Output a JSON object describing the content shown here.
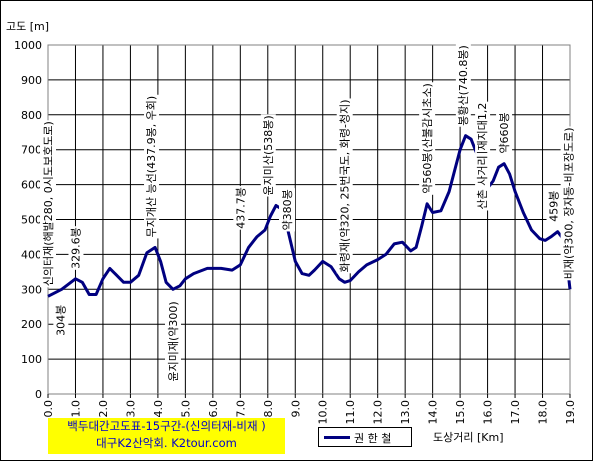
{
  "chart_data": {
    "type": "line",
    "title": "백두대간고도표-15구간-(신의터재-비재 )",
    "subtitle": "대구K2산악회. K2tour.com",
    "ylabel": "고도 [m]",
    "xlabel": "도상거리 [Km]",
    "ylim": [
      0,
      1000
    ],
    "y_ticks": [
      "0",
      "100",
      "200",
      "300",
      "400",
      "500",
      "600",
      "700",
      "800",
      "900",
      "1000"
    ],
    "xlim": [
      0,
      19
    ],
    "x_ticks": [
      "0.0",
      "1.0",
      "2.0",
      "3.0",
      "4.0",
      "5.0",
      "6.0",
      "7.0",
      "8.0",
      "9.0",
      "10.0",
      "11.0",
      "12.0",
      "13.0",
      "14.0",
      "15.0",
      "16.0",
      "17.0",
      "18.0",
      "19.0"
    ],
    "grid": true,
    "legend_position": "bottom-center",
    "series": [
      {
        "name": "권 한 철",
        "color": "#000080",
        "x": [
          0.0,
          0.5,
          1.0,
          1.25,
          1.5,
          1.75,
          2.0,
          2.25,
          2.5,
          2.75,
          3.0,
          3.3,
          3.6,
          3.9,
          4.1,
          4.3,
          4.55,
          4.8,
          5.0,
          5.3,
          5.8,
          6.3,
          6.7,
          7.0,
          7.3,
          7.6,
          7.9,
          8.1,
          8.3,
          8.5,
          8.7,
          9.0,
          9.25,
          9.5,
          9.7,
          10.0,
          10.3,
          10.6,
          10.8,
          11.0,
          11.3,
          11.6,
          12.0,
          12.3,
          12.6,
          12.9,
          13.2,
          13.4,
          13.6,
          13.8,
          14.0,
          14.3,
          14.6,
          14.8,
          15.0,
          15.2,
          15.4,
          15.6,
          15.8,
          16.0,
          16.2,
          16.4,
          16.6,
          16.8,
          17.0,
          17.3,
          17.6,
          17.9,
          18.1,
          18.3,
          18.55,
          18.8,
          19.0
        ],
        "values": [
          280,
          300,
          330,
          320,
          285,
          285,
          330,
          360,
          340,
          320,
          320,
          340,
          405,
          420,
          380,
          320,
          300,
          310,
          330,
          345,
          360,
          360,
          355,
          370,
          420,
          450,
          470,
          510,
          540,
          530,
          480,
          380,
          345,
          340,
          355,
          380,
          365,
          330,
          320,
          325,
          350,
          370,
          385,
          400,
          430,
          435,
          410,
          420,
          480,
          545,
          520,
          525,
          580,
          640,
          700,
          740,
          730,
          690,
          620,
          590,
          610,
          650,
          660,
          630,
          580,
          520,
          470,
          445,
          440,
          450,
          465,
          440,
          300
        ]
      }
    ],
    "annotations": [
      {
        "text": "신의터재(해발280, 0시도보호도로)",
        "x": 0.0,
        "y": 280
      },
      {
        "text": "329.6봉",
        "x": 1.0,
        "y": 330
      },
      {
        "text": "304봉",
        "x": 0.45,
        "y": 290
      },
      {
        "text": "무지개산 능선(437.9봉, 우회)",
        "x": 3.75,
        "y": 420
      },
      {
        "text": "윤지미재(약300)",
        "x": 4.55,
        "y": 300
      },
      {
        "text": "437.7봉",
        "x": 7.0,
        "y": 445
      },
      {
        "text": "윤지미산(538봉)",
        "x": 8.0,
        "y": 540
      },
      {
        "text": "약380봉",
        "x": 8.7,
        "y": 440
      },
      {
        "text": "화령재(약320, 25번국도, 화령-청지)",
        "x": 10.8,
        "y": 320
      },
      {
        "text": "약560봉(산불감시초소)",
        "x": 13.8,
        "y": 545
      },
      {
        "text": "봉황산(740.8봉)",
        "x": 15.1,
        "y": 740
      },
      {
        "text": "비재지대1,2",
        "x": 15.8,
        "y": 640
      },
      {
        "text": "산촌 사거리",
        "x": 15.8,
        "y": 500
      },
      {
        "text": "약660봉",
        "x": 16.6,
        "y": 660
      },
      {
        "text": "459봉",
        "x": 18.4,
        "y": 465
      },
      {
        "text": "비재(약300, 장자동-비포장도로)",
        "x": 18.95,
        "y": 300
      }
    ]
  }
}
